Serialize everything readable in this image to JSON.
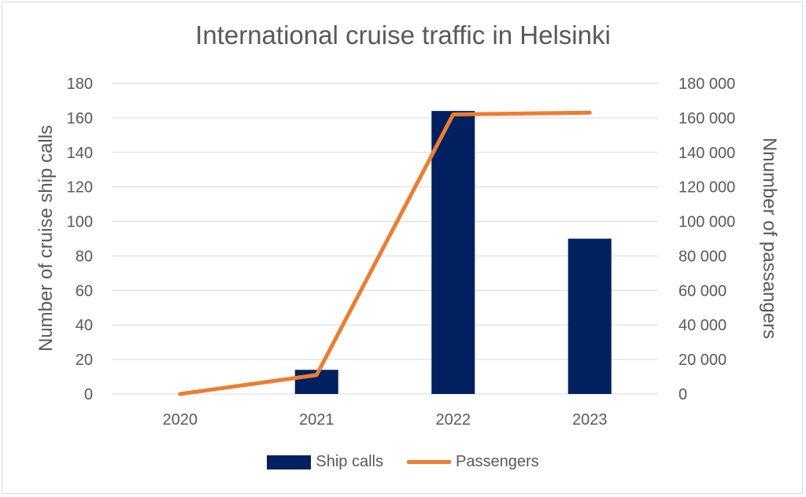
{
  "chart_data": {
    "type": "bar",
    "title": "International cruise traffic in Helsinki",
    "categories": [
      "2020",
      "2021",
      "2022",
      "2023"
    ],
    "series": [
      {
        "name": "Ship calls",
        "type": "bar",
        "axis": "left",
        "color": "#002060",
        "values": [
          0,
          14,
          164,
          90
        ]
      },
      {
        "name": "Passengers",
        "type": "line",
        "axis": "right",
        "color": "#ED7D31",
        "values": [
          0,
          11000,
          162000,
          163000
        ]
      }
    ],
    "ylabel": "Number of cruise ship calls",
    "y2label": "Nnumber  of passangers",
    "ylim": [
      0,
      180
    ],
    "y2lim": [
      0,
      180000
    ],
    "yticks": [
      "0",
      "20",
      "40",
      "60",
      "80",
      "100",
      "120",
      "140",
      "160",
      "180"
    ],
    "y2ticks": [
      "0",
      "20 000",
      "40 000",
      "60 000",
      "80 000",
      "100 000",
      "120 000",
      "140 000",
      "160 000",
      "180 000"
    ],
    "grid": true,
    "legend_position": "bottom"
  }
}
